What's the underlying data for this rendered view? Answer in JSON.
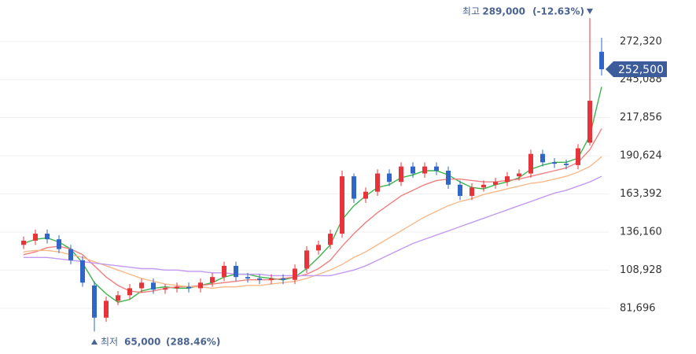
{
  "chart_data": {
    "type": "candlestick",
    "ylim": [
      49000,
      302000
    ],
    "yticks": [
      {
        "value": 81696,
        "label": "81,696"
      },
      {
        "value": 108928,
        "label": "108,928"
      },
      {
        "value": 136160,
        "label": "136,160"
      },
      {
        "value": 163392,
        "label": "163,392"
      },
      {
        "value": 190624,
        "label": "190,624"
      },
      {
        "value": 217856,
        "label": "217,856"
      },
      {
        "value": 245088,
        "label": "245,088"
      },
      {
        "value": 272320,
        "label": "272,320"
      }
    ],
    "grid": true,
    "up_color": "#e8333a",
    "down_color": "#2f66c8",
    "open": [
      127000,
      130000,
      135000,
      131000,
      124000,
      116000,
      98000,
      75000,
      87000,
      91000,
      96000,
      100000,
      95000,
      96000,
      97000,
      96000,
      100000,
      104000,
      112000,
      104000,
      103000,
      102000,
      103000,
      102000,
      110000,
      123000,
      127000,
      135000,
      176000,
      160000,
      165000,
      178000,
      172000,
      183000,
      178000,
      183000,
      180000,
      170000,
      162000,
      168000,
      170000,
      172000,
      176000,
      178000,
      192000,
      186000,
      185000,
      184000,
      200000,
      265000
    ],
    "high": [
      133000,
      138000,
      138000,
      134000,
      127000,
      119000,
      101000,
      90000,
      94000,
      99000,
      103000,
      103000,
      99000,
      100000,
      100000,
      103000,
      107000,
      115000,
      115000,
      107000,
      106000,
      106000,
      106000,
      113000,
      126000,
      130000,
      138000,
      180000,
      178000,
      168000,
      181000,
      181000,
      186000,
      186000,
      186000,
      186000,
      183000,
      173000,
      171000,
      173000,
      175000,
      179000,
      181000,
      195000,
      195000,
      189000,
      188000,
      199000,
      289000,
      275000
    ],
    "low": [
      124000,
      127000,
      128000,
      121000,
      113000,
      97000,
      65000,
      72000,
      84000,
      88000,
      93000,
      92000,
      92000,
      93000,
      93000,
      93000,
      97000,
      101000,
      101000,
      100000,
      99000,
      99000,
      99000,
      99000,
      107000,
      120000,
      124000,
      132000,
      157000,
      157000,
      162000,
      169000,
      169000,
      175000,
      175000,
      177000,
      167000,
      159000,
      159000,
      165000,
      167000,
      169000,
      173000,
      175000,
      183000,
      182000,
      181000,
      181000,
      198000,
      248000
    ],
    "close": [
      130000,
      135000,
      131000,
      124000,
      116000,
      100000,
      75000,
      87000,
      91000,
      96000,
      100000,
      95000,
      96000,
      97000,
      96000,
      100000,
      104000,
      112000,
      104000,
      103000,
      102000,
      103000,
      102000,
      110000,
      123000,
      127000,
      135000,
      176000,
      160000,
      165000,
      178000,
      172000,
      183000,
      178000,
      183000,
      180000,
      170000,
      162000,
      168000,
      170000,
      172000,
      176000,
      178000,
      192000,
      186000,
      185000,
      184000,
      196000,
      230000,
      252500
    ],
    "lines": [
      {
        "color": "#3cb44b",
        "values": [
          128000,
          131000,
          132000,
          129000,
          124000,
          114000,
          100000,
          92000,
          86000,
          88000,
          94000,
          96000,
          97000,
          96000,
          96000,
          98000,
          100000,
          104000,
          106000,
          106000,
          104000,
          103000,
          102000,
          104000,
          110000,
          118000,
          127000,
          145000,
          155000,
          162000,
          168000,
          170000,
          175000,
          177000,
          180000,
          180000,
          177000,
          172000,
          168000,
          167000,
          170000,
          172000,
          175000,
          181000,
          184000,
          186000,
          186000,
          189000,
          205000,
          240000
        ]
      },
      {
        "color": "#f08080",
        "values": [
          120000,
          122000,
          125000,
          126000,
          124000,
          120000,
          112000,
          104000,
          98000,
          94000,
          93000,
          94000,
          96000,
          97000,
          97000,
          98000,
          99000,
          100000,
          101000,
          102000,
          102000,
          102000,
          103000,
          104000,
          106000,
          110000,
          116000,
          126000,
          135000,
          143000,
          150000,
          156000,
          162000,
          166000,
          170000,
          173000,
          174000,
          174000,
          173000,
          172000,
          172000,
          173000,
          174000,
          176000,
          178000,
          180000,
          182000,
          186000,
          195000,
          210000
        ]
      },
      {
        "color": "#f7b98a",
        "values": [
          122000,
          123000,
          123000,
          122000,
          120000,
          118000,
          115000,
          112000,
          109000,
          106000,
          103000,
          101000,
          99000,
          98000,
          97000,
          97000,
          96000,
          97000,
          97000,
          98000,
          98000,
          99000,
          100000,
          101000,
          103000,
          106000,
          109000,
          113000,
          118000,
          122000,
          127000,
          132000,
          137000,
          142000,
          147000,
          151000,
          155000,
          158000,
          160000,
          163000,
          165000,
          167000,
          169000,
          171000,
          172000,
          174000,
          176000,
          179000,
          183000,
          190000
        ]
      },
      {
        "color": "#c29af0",
        "values": [
          118000,
          118000,
          118000,
          117000,
          116000,
          115000,
          114000,
          113000,
          112000,
          111000,
          110000,
          110000,
          109000,
          109000,
          108000,
          108000,
          107000,
          107000,
          106000,
          106000,
          106000,
          105000,
          105000,
          105000,
          105000,
          105000,
          105000,
          107000,
          109000,
          112000,
          116000,
          120000,
          124000,
          128000,
          131000,
          134000,
          137000,
          140000,
          143000,
          146000,
          149000,
          152000,
          155000,
          158000,
          161000,
          164000,
          166000,
          169000,
          172000,
          176000
        ]
      }
    ],
    "current": {
      "value": 252500,
      "label": "252,500"
    },
    "max_label": "최고",
    "max": {
      "value": 289000,
      "label": "289,000"
    },
    "max_change": "(-12.63%)",
    "min_label": "최저",
    "min": {
      "value": 65000,
      "label": "65,000"
    },
    "min_change": "(288.46%)"
  }
}
